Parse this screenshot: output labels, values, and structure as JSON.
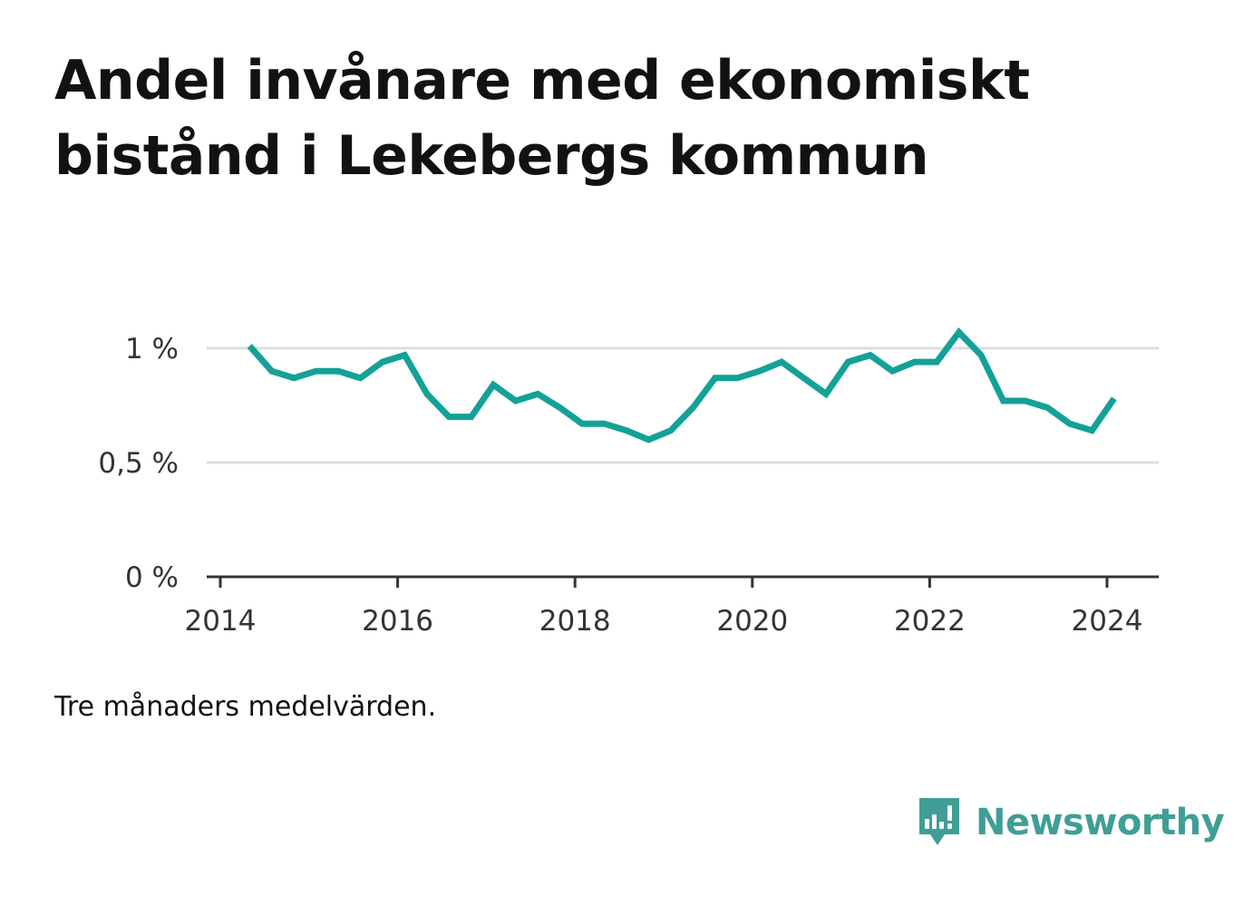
{
  "title": "Andel invånare med ekonomiskt bistånd i Lekebergs kommun",
  "note": "Tre månaders medelvärden.",
  "brand": {
    "name": "Newsworthy",
    "icon": "newsworthy-logo-icon",
    "color": "#3f9e96"
  },
  "colors": {
    "line": "#13a198",
    "grid": "#dddddd",
    "axis": "#333333"
  },
  "chart_data": {
    "type": "line",
    "title": "Andel invånare med ekonomiskt bistånd i Lekebergs kommun",
    "xlabel": "",
    "ylabel": "",
    "xlim": [
      2014,
      2024.6
    ],
    "ylim": [
      0,
      1
    ],
    "x_ticks": [
      2014,
      2016,
      2018,
      2020,
      2022,
      2024
    ],
    "y_ticks": [
      {
        "value": 0,
        "label": "0 %"
      },
      {
        "value": 0.5,
        "label": "0,5 %"
      },
      {
        "value": 1,
        "label": "1 %"
      }
    ],
    "grid": "horizontal",
    "legend": "none",
    "series": [
      {
        "x": [
          2014.33,
          2014.58,
          2014.83,
          2015.08,
          2015.33,
          2015.58,
          2015.83,
          2016.08,
          2016.33,
          2016.58,
          2016.83,
          2017.08,
          2017.33,
          2017.58,
          2017.83,
          2018.08,
          2018.33,
          2018.58,
          2018.83,
          2019.08,
          2019.33,
          2019.58,
          2019.83,
          2020.08,
          2020.33,
          2020.58,
          2020.83,
          2021.08,
          2021.33,
          2021.58,
          2021.83,
          2022.08,
          2022.33,
          2022.58,
          2022.83,
          2023.08,
          2023.33,
          2023.58,
          2023.83,
          2024.08
        ],
        "values": [
          1.01,
          0.9,
          0.87,
          0.9,
          0.9,
          0.87,
          0.94,
          0.97,
          0.8,
          0.7,
          0.7,
          0.84,
          0.77,
          0.8,
          0.74,
          0.67,
          0.67,
          0.64,
          0.6,
          0.64,
          0.74,
          0.87,
          0.87,
          0.9,
          0.94,
          0.87,
          0.8,
          0.94,
          0.97,
          0.9,
          0.94,
          0.94,
          1.07,
          0.97,
          0.77,
          0.77,
          0.74,
          0.67,
          0.64,
          0.78
        ]
      }
    ]
  }
}
